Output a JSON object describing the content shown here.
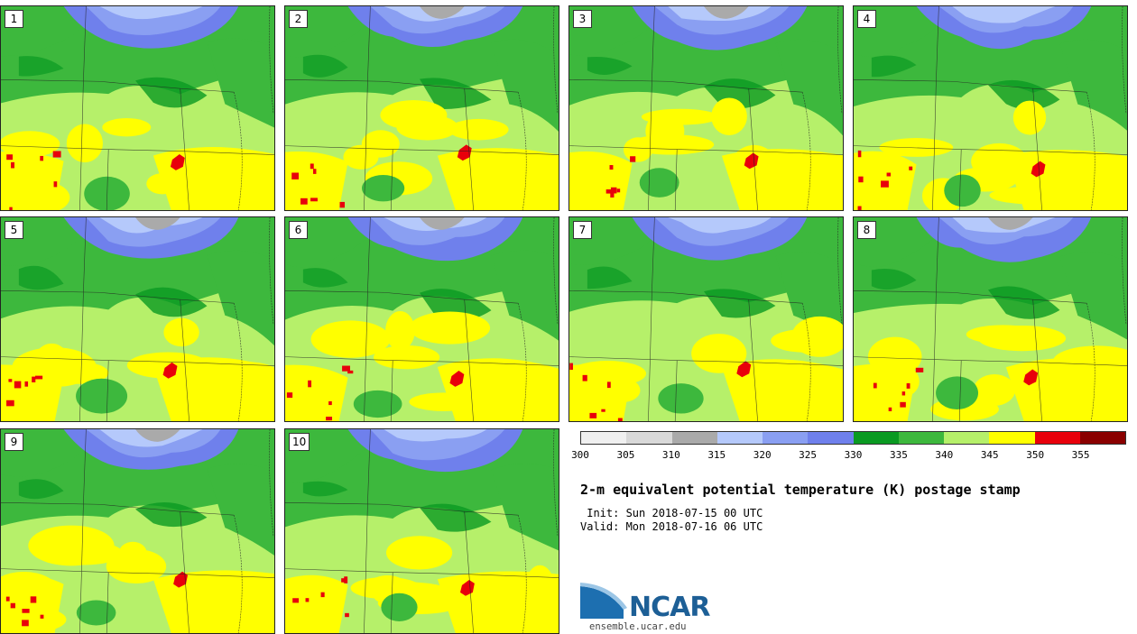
{
  "panels": [
    {
      "label": "1"
    },
    {
      "label": "2"
    },
    {
      "label": "3"
    },
    {
      "label": "4"
    },
    {
      "label": "5"
    },
    {
      "label": "6"
    },
    {
      "label": "7"
    },
    {
      "label": "8"
    },
    {
      "label": "9"
    },
    {
      "label": "10"
    }
  ],
  "colorbar": {
    "colors": [
      "#f0f0f0",
      "#d9d9d9",
      "#aaaaaa",
      "#b5c9fb",
      "#8a9ff2",
      "#6f80ec",
      "#0a9a22",
      "#3db83d",
      "#b6f06a",
      "#ffff00",
      "#e8000b",
      "#8a0000"
    ],
    "ticks": [
      "300",
      "305",
      "310",
      "315",
      "320",
      "325",
      "330",
      "335",
      "340",
      "345",
      "350",
      "355"
    ]
  },
  "title": "2-m equivalent potential temperature (K) postage stamp",
  "init_text": " Init: Sun 2018-07-15 00 UTC",
  "valid_text": "Valid: Mon 2018-07-16 06 UTC",
  "logo_text": "NCAR",
  "website": "ensemble.ucar.edu"
}
